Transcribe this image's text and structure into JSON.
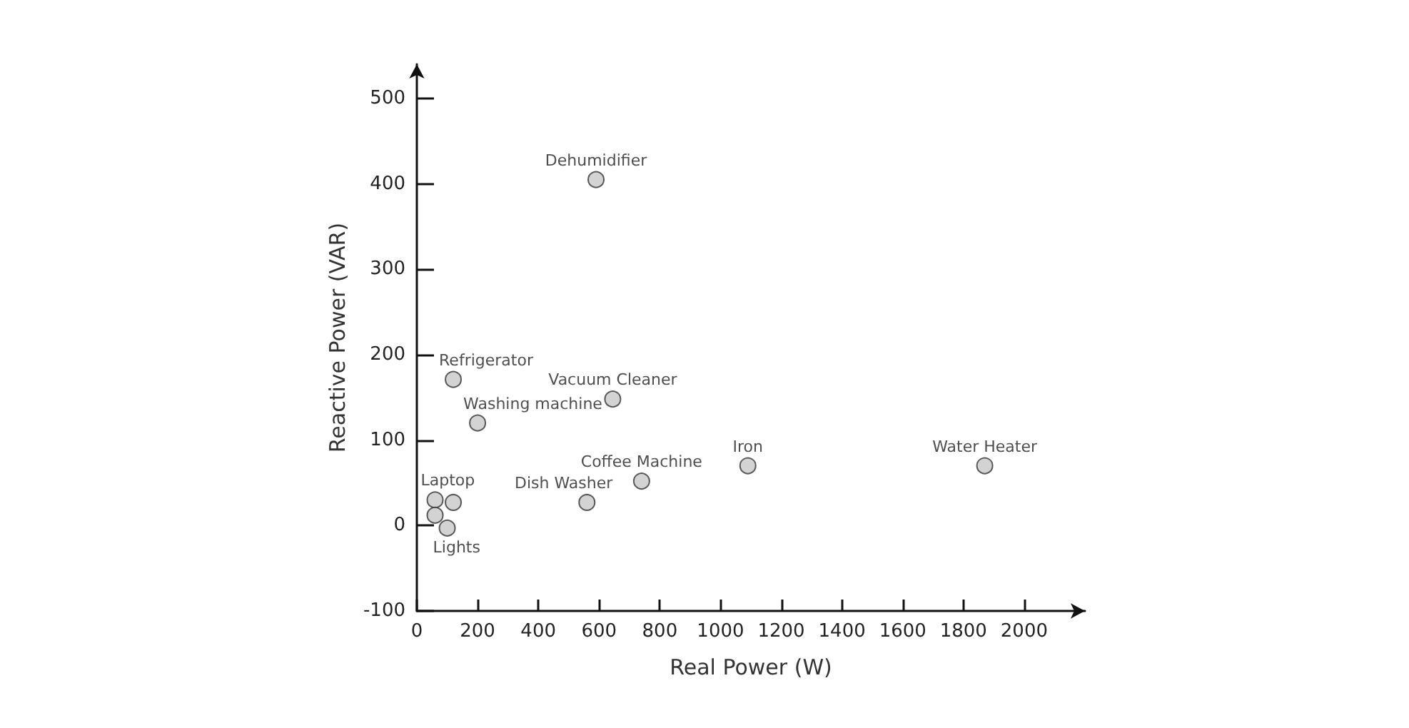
{
  "chart_data": {
    "type": "scatter",
    "xlabel": "Real Power (W)",
    "ylabel": "Reactive Power (VAR)",
    "x": [
      590,
      120,
      200,
      645,
      740,
      560,
      1090,
      1870,
      60,
      120,
      60,
      100
    ],
    "values": [
      405,
      171,
      120,
      148,
      52,
      27,
      70,
      70,
      30,
      27,
      12,
      -3
    ],
    "color": "#c8c8c8",
    "marker": "circle",
    "grid": false,
    "xlim": [
      0,
      2200
    ],
    "xticks": [
      0,
      200,
      400,
      600,
      800,
      1000,
      1200,
      1400,
      1600,
      1800,
      2000
    ],
    "ylim": [
      -100,
      540
    ],
    "yticks": [
      -100,
      0,
      100,
      200,
      300,
      400,
      500
    ],
    "annotations": [
      {
        "text": "Dehumidifier",
        "x": 590,
        "y": 405
      },
      {
        "text": "Refrigerator",
        "x": 120,
        "y": 171
      },
      {
        "text": "Washing machine",
        "x": 200,
        "y": 120
      },
      {
        "text": "Vacuum Cleaner",
        "x": 645,
        "y": 148
      },
      {
        "text": "Coffee Machine",
        "x": 740,
        "y": 52
      },
      {
        "text": "Dish Washer",
        "x": 560,
        "y": 27
      },
      {
        "text": "Iron",
        "x": 1090,
        "y": 70
      },
      {
        "text": "Water Heater",
        "x": 1870,
        "y": 70
      },
      {
        "text": "Laptop",
        "x": 60,
        "y": 30
      },
      {
        "text": "Lights",
        "x": 100,
        "y": -3
      }
    ]
  }
}
